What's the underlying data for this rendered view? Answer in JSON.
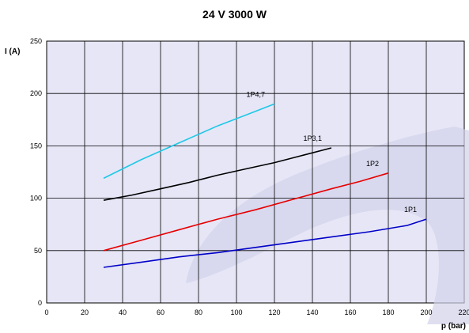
{
  "chart_data": {
    "type": "line",
    "title": "24 V 3000 W",
    "xlabel": "p (bar)",
    "ylabel": "I (A)",
    "xlim": [
      0,
      220
    ],
    "ylim": [
      0,
      250
    ],
    "x_ticks": [
      "0",
      "20",
      "40",
      "60",
      "80",
      "100",
      "120",
      "140",
      "160",
      "180",
      "200",
      "220"
    ],
    "y_ticks": [
      "0",
      "50",
      "100",
      "150",
      "200",
      "250"
    ],
    "grid": true,
    "background_color": "#e6e6f7",
    "series": [
      {
        "name": "1P4,7",
        "color": "#1ec8e6",
        "x": [
          30,
          40,
          50,
          60,
          70,
          80,
          90,
          100,
          110,
          120
        ],
        "y": [
          119,
          128,
          137,
          145,
          153,
          161,
          169,
          176,
          183,
          190
        ]
      },
      {
        "name": "1P3,1",
        "color": "#000000",
        "x": [
          30,
          45,
          60,
          75,
          90,
          105,
          120,
          135,
          150
        ],
        "y": [
          98,
          103,
          109,
          115,
          122,
          128,
          134,
          141,
          148
        ]
      },
      {
        "name": "1P2",
        "color": "#e60000",
        "x": [
          30,
          50,
          70,
          90,
          110,
          130,
          150,
          165,
          180
        ],
        "y": [
          50,
          60,
          70,
          80,
          89,
          99,
          109,
          116,
          124
        ]
      },
      {
        "name": "1P1",
        "color": "#0000c8",
        "x": [
          30,
          50,
          70,
          90,
          110,
          130,
          150,
          170,
          190,
          200
        ],
        "y": [
          34,
          39,
          44,
          48,
          53,
          58,
          63,
          68,
          74,
          80
        ]
      }
    ]
  }
}
